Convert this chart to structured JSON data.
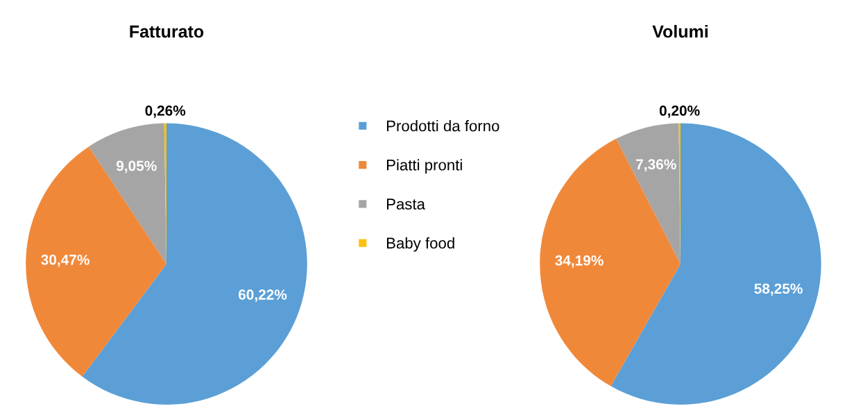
{
  "chart_data": [
    {
      "type": "pie",
      "title": "Fatturato",
      "categories": [
        "Prodotti da forno",
        "Piatti pronti",
        "Pasta",
        "Baby food"
      ],
      "values": [
        60.22,
        30.47,
        9.05,
        0.26
      ],
      "value_labels": [
        "60,22%",
        "30,47%",
        "9,05%",
        "0,26%"
      ],
      "colors": [
        "#5b9fd6",
        "#f0883a",
        "#a5a5a5",
        "#fdc00f"
      ],
      "legend": "right"
    },
    {
      "type": "pie",
      "title": "Volumi",
      "values": [
        58.25,
        34.19,
        7.36,
        0.2
      ],
      "value_labels": [
        "58,25%",
        "34,19%",
        "7,36%",
        "0,20%"
      ],
      "colors": [
        "#5b9fd6",
        "#f0883a",
        "#a5a5a5",
        "#fdc00f"
      ]
    }
  ]
}
